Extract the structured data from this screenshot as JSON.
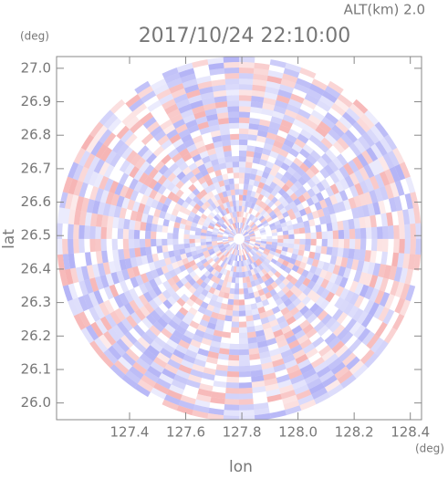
{
  "chart_data": {
    "type": "ppi",
    "title": "2017/10/24 22:10:00",
    "subtitle": "ALT(km) 2.0",
    "x_label": "lon",
    "x_unit": "(deg)",
    "y_label": "lat",
    "y_unit": "(deg)",
    "xlim": [
      127.14,
      128.44
    ],
    "ylim": [
      25.95,
      27.035
    ],
    "xticks": [
      127.4,
      127.6,
      127.8,
      {
        "value": 128.0,
        "label": "128.0"
      },
      128.2,
      128.4
    ],
    "yticks": [
      {
        "value": 26.0,
        "label": "26.0"
      },
      26.1,
      26.2,
      26.3,
      26.4,
      26.5,
      26.6,
      26.7,
      26.8,
      26.9,
      {
        "value": 27.0,
        "label": "27.0"
      }
    ],
    "center": [
      127.79,
      26.49
    ],
    "colors": [
      "#f08080",
      "#8080f0"
    ]
  }
}
